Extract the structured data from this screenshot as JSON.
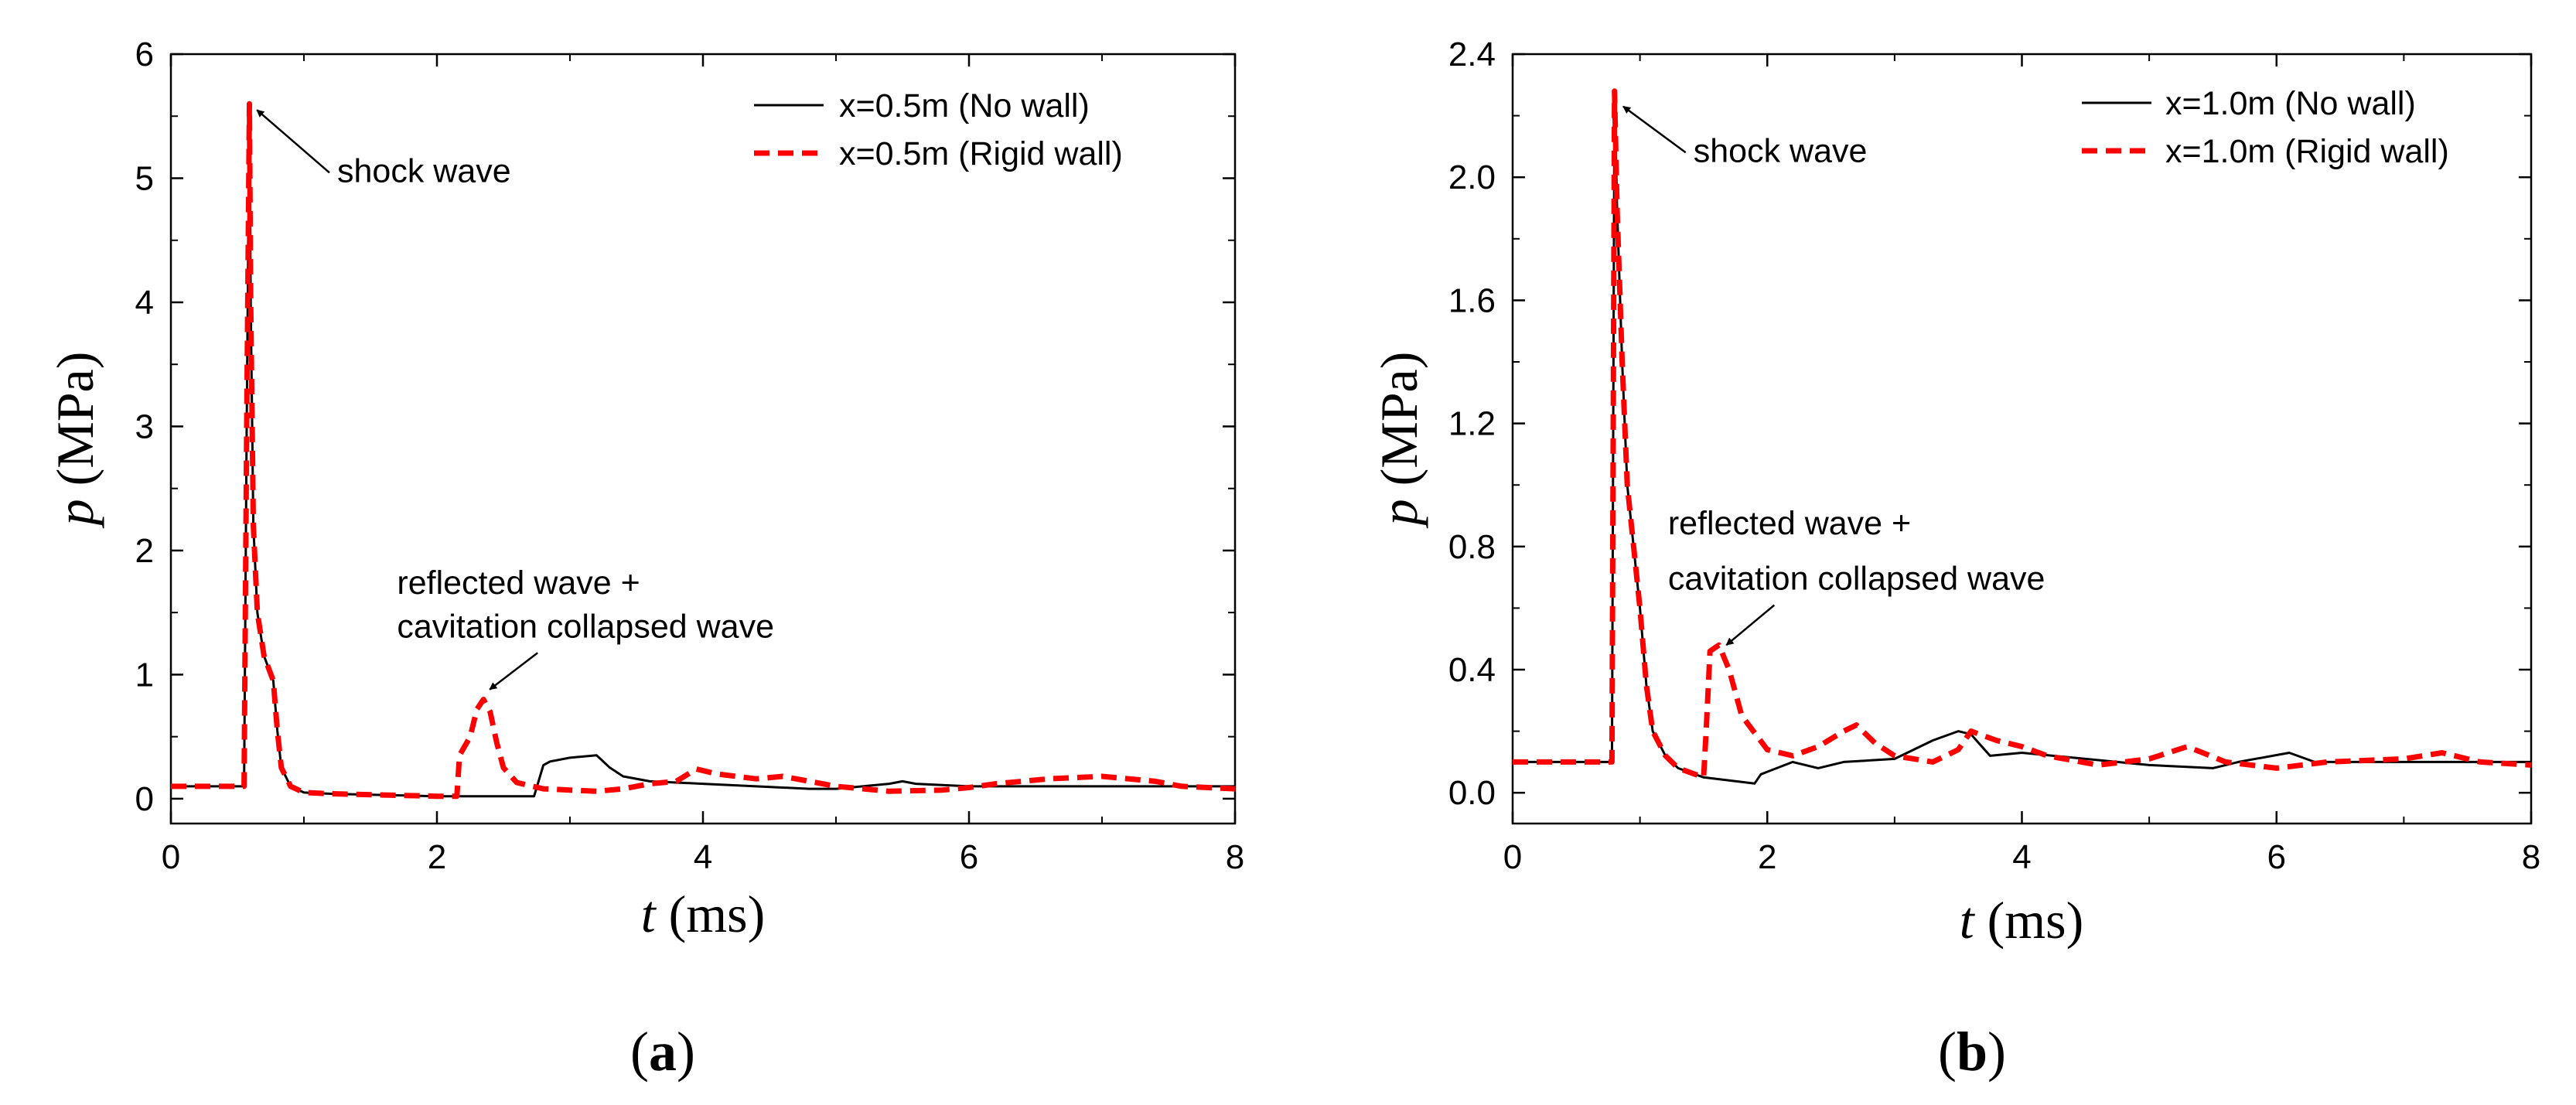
{
  "chart_data": [
    {
      "type": "line",
      "panel_label": "a",
      "xlabel": "ms",
      "xlabel_var": "t",
      "ylabel": "MPa",
      "ylabel_var": "p",
      "xlim": [
        0,
        8
      ],
      "ylim": [
        -0.2,
        6
      ],
      "xticks": [
        0,
        2,
        4,
        6,
        8
      ],
      "xtick_labels": [
        "0",
        "2",
        "4",
        "6",
        "8"
      ],
      "yticks": [
        0,
        1,
        2,
        3,
        4,
        5,
        6
      ],
      "ytick_labels": [
        "0",
        "1",
        "2",
        "3",
        "4",
        "5",
        "6"
      ],
      "legend_position": "top-right",
      "series": [
        {
          "name": "x=0.5m (No wall)",
          "style": "solid",
          "color": "#000000",
          "x": [
            0,
            0.55,
            0.57,
            0.59,
            0.6,
            0.62,
            0.65,
            0.7,
            0.77,
            0.8,
            0.83,
            0.9,
            1.0,
            1.2,
            1.6,
            2.0,
            2.3,
            2.6,
            2.73,
            2.8,
            2.85,
            3.0,
            3.2,
            3.3,
            3.4,
            3.6,
            4.0,
            4.4,
            4.8,
            5.0,
            5.2,
            5.4,
            5.5,
            5.6,
            6.0,
            6.5,
            7.0,
            7.5,
            8.0
          ],
          "y": [
            0.1,
            0.1,
            3.0,
            5.6,
            4.0,
            2.2,
            1.5,
            1.15,
            0.95,
            0.55,
            0.25,
            0.1,
            0.05,
            0.04,
            0.03,
            0.02,
            0.02,
            0.02,
            0.02,
            0.27,
            0.3,
            0.33,
            0.35,
            0.25,
            0.18,
            0.14,
            0.12,
            0.1,
            0.08,
            0.08,
            0.1,
            0.12,
            0.14,
            0.12,
            0.1,
            0.1,
            0.1,
            0.1,
            0.1
          ]
        },
        {
          "name": "x=0.5m (Rigid wall)",
          "style": "dashed",
          "color": "#ff0000",
          "x": [
            0,
            0.55,
            0.57,
            0.59,
            0.6,
            0.62,
            0.65,
            0.7,
            0.77,
            0.8,
            0.83,
            0.9,
            1.0,
            1.2,
            1.6,
            2.0,
            2.15,
            2.17,
            2.25,
            2.3,
            2.35,
            2.4,
            2.45,
            2.5,
            2.6,
            2.8,
            3.0,
            3.2,
            3.4,
            3.6,
            3.8,
            3.95,
            4.1,
            4.4,
            4.6,
            4.8,
            5.0,
            5.4,
            5.8,
            6.0,
            6.2,
            6.4,
            6.6,
            7.0,
            7.4,
            7.6,
            8.0
          ],
          "y": [
            0.1,
            0.1,
            3.0,
            5.6,
            4.0,
            2.2,
            1.5,
            1.15,
            0.95,
            0.55,
            0.25,
            0.1,
            0.05,
            0.04,
            0.03,
            0.02,
            0.02,
            0.35,
            0.5,
            0.72,
            0.8,
            0.7,
            0.45,
            0.25,
            0.13,
            0.08,
            0.07,
            0.06,
            0.08,
            0.12,
            0.14,
            0.24,
            0.2,
            0.16,
            0.18,
            0.14,
            0.1,
            0.06,
            0.07,
            0.09,
            0.12,
            0.14,
            0.16,
            0.18,
            0.14,
            0.1,
            0.08
          ]
        }
      ],
      "annotations": [
        {
          "text": "shock wave",
          "target": [
            0.6,
            5.55
          ],
          "text_at": [
            1.25,
            4.97
          ]
        },
        {
          "text": "reflected wave +",
          "target": [
            2.35,
            0.88
          ],
          "text_at": [
            1.7,
            1.65
          ]
        },
        {
          "text": "cavitation collapsed wave",
          "target": [
            2.35,
            0.88
          ],
          "text_at": [
            1.7,
            1.3
          ]
        }
      ]
    },
    {
      "type": "line",
      "panel_label": "b",
      "xlabel": "ms",
      "xlabel_var": "t",
      "ylabel": "MPa",
      "ylabel_var": "p",
      "xlim": [
        0,
        8
      ],
      "ylim": [
        -0.1,
        2.4
      ],
      "xticks": [
        0,
        2,
        4,
        6,
        8
      ],
      "xtick_labels": [
        "0",
        "2",
        "4",
        "6",
        "8"
      ],
      "yticks": [
        0,
        0.4,
        0.8,
        1.2,
        1.6,
        2.0,
        2.4
      ],
      "ytick_labels": [
        "0.0",
        "0.4",
        "0.8",
        "1.2",
        "1.6",
        "2.0",
        "2.4"
      ],
      "legend_position": "top-right",
      "series": [
        {
          "name": "x=1.0m (No wall)",
          "style": "solid",
          "color": "#000000",
          "x": [
            0,
            0.78,
            0.8,
            0.82,
            0.86,
            0.9,
            0.95,
            1.0,
            1.05,
            1.1,
            1.2,
            1.3,
            1.5,
            1.7,
            1.9,
            1.95,
            2.2,
            2.4,
            2.6,
            3.0,
            3.2,
            3.3,
            3.5,
            3.6,
            3.75,
            4.0,
            4.5,
            5.0,
            5.5,
            5.7,
            6.1,
            6.3,
            6.8,
            7.5,
            8.0
          ],
          "y": [
            0.1,
            0.1,
            2.28,
            1.9,
            1.4,
            1.0,
            0.8,
            0.6,
            0.35,
            0.2,
            0.12,
            0.08,
            0.05,
            0.04,
            0.03,
            0.06,
            0.1,
            0.08,
            0.1,
            0.11,
            0.15,
            0.17,
            0.2,
            0.19,
            0.12,
            0.13,
            0.11,
            0.09,
            0.08,
            0.1,
            0.13,
            0.1,
            0.1,
            0.1,
            0.1
          ]
        },
        {
          "name": "x=1.0m (Rigid wall)",
          "style": "dashed",
          "color": "#ff0000",
          "x": [
            0,
            0.78,
            0.8,
            0.82,
            0.86,
            0.9,
            0.95,
            1.0,
            1.05,
            1.1,
            1.2,
            1.3,
            1.5,
            1.52,
            1.55,
            1.62,
            1.7,
            1.8,
            2.0,
            2.2,
            2.4,
            2.6,
            2.7,
            2.85,
            3.0,
            3.3,
            3.5,
            3.6,
            3.8,
            4.0,
            4.2,
            4.6,
            5.0,
            5.3,
            5.6,
            6.0,
            6.4,
            7.0,
            7.3,
            7.6,
            8.0
          ],
          "y": [
            0.1,
            0.1,
            2.28,
            1.9,
            1.4,
            1.0,
            0.8,
            0.6,
            0.35,
            0.2,
            0.12,
            0.08,
            0.05,
            0.2,
            0.46,
            0.48,
            0.4,
            0.25,
            0.14,
            0.12,
            0.15,
            0.2,
            0.22,
            0.16,
            0.12,
            0.1,
            0.14,
            0.2,
            0.17,
            0.15,
            0.12,
            0.09,
            0.11,
            0.15,
            0.1,
            0.08,
            0.1,
            0.11,
            0.13,
            0.1,
            0.09
          ]
        }
      ],
      "annotations": [
        {
          "text": "shock wave",
          "target": [
            0.82,
            2.23
          ],
          "text_at": [
            1.42,
            2.05
          ]
        },
        {
          "text": "reflected wave +",
          "target": [
            1.63,
            0.48
          ],
          "text_at": [
            1.22,
            0.84
          ]
        },
        {
          "text": "cavitation collapsed wave",
          "target": [
            1.63,
            0.48
          ],
          "text_at": [
            1.22,
            0.66
          ]
        }
      ]
    }
  ]
}
